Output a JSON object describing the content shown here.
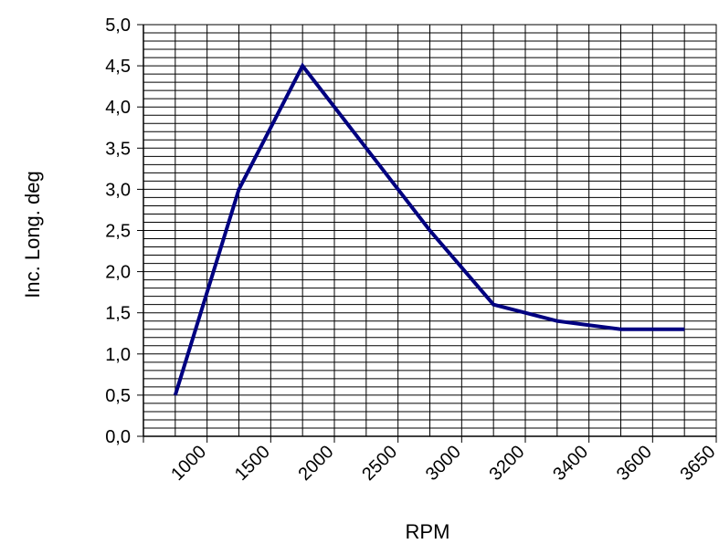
{
  "chart_data": {
    "type": "line",
    "categories": [
      "1000",
      "1500",
      "2000",
      "2500",
      "3000",
      "3200",
      "3400",
      "3600",
      "3650"
    ],
    "series": [
      {
        "values": [
          0.5,
          3.0,
          4.5,
          3.5,
          2.5,
          1.6,
          1.4,
          1.3,
          1.3
        ],
        "color": "#000080"
      }
    ],
    "y_ticks": [
      "0,0",
      "0,5",
      "1,0",
      "1,5",
      "2,0",
      "2,5",
      "3,0",
      "3,5",
      "4,0",
      "4,5",
      "5,0"
    ],
    "xlabel": "RPM",
    "ylabel": "Inc. Long. deg",
    "ylim": [
      0,
      5
    ],
    "y_major_step": 0.5,
    "y_minor_step": 0.1,
    "x_minor_per_category": 2,
    "grid": true,
    "line_color": "#000080",
    "grid_color": "#000000"
  }
}
